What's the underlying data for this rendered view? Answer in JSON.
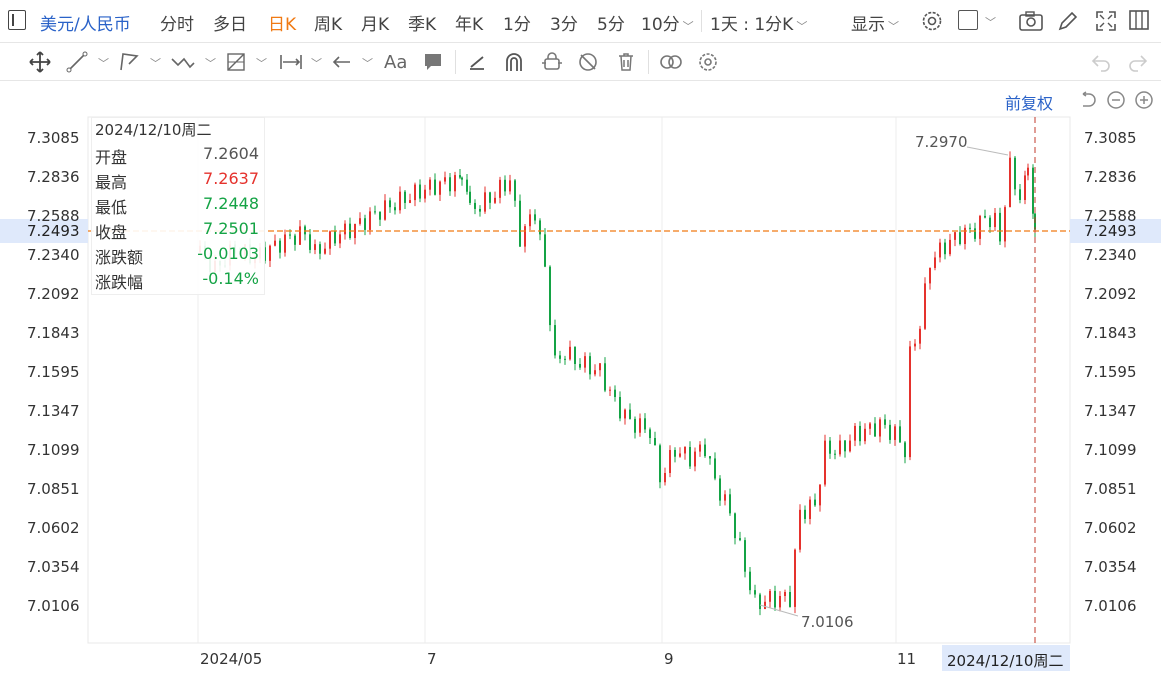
{
  "toolbar": {
    "symbol": "美元/人民币",
    "periods": [
      "分时",
      "多日",
      "日K",
      "周K",
      "月K",
      "季K",
      "年K",
      "1分",
      "3分",
      "5分"
    ],
    "active_period": "日K",
    "minute_select": "10分",
    "multi_select": "1天 : 1分K",
    "display_label": "显示"
  },
  "chart": {
    "adjust_label": "前复权",
    "y_ticks": [
      "7.3085",
      "7.2836",
      "7.2588",
      "7.2340",
      "7.2092",
      "7.1843",
      "7.1595",
      "7.1347",
      "7.1099",
      "7.0851",
      "7.0602",
      "7.0354",
      "7.0106"
    ],
    "current_price": "7.2493",
    "x_labels": [
      "2024/05",
      "7",
      "9",
      "11"
    ],
    "crosshair_date": "2024/12/10周二",
    "high_marker": "7.2970",
    "low_marker": "7.0106"
  },
  "info": {
    "date": "2024/12/10周二",
    "rows": [
      {
        "label": "开盘",
        "value": "7.2604"
      },
      {
        "label": "最高",
        "value": "7.2637"
      },
      {
        "label": "最低",
        "value": "7.2448"
      },
      {
        "label": "收盘",
        "value": "7.2501"
      },
      {
        "label": "涨跌额",
        "value": "-0.0103"
      },
      {
        "label": "涨跌幅",
        "value": "-0.14%"
      }
    ]
  },
  "colors": {
    "up": "#e5322d",
    "down": "#14a345",
    "accent": "#f07a14",
    "link": "#2a62c8"
  },
  "icons": [
    "grid-icon",
    "settings-icon",
    "checkbox-icon",
    "camera-icon",
    "pencil-icon",
    "fullscreen-icon",
    "move-icon",
    "line-tool-icon",
    "polyline-tool-icon",
    "wave-tool-icon",
    "fib-tool-icon",
    "measure-icon",
    "arrow-icon",
    "text-icon",
    "note-icon",
    "brush-icon",
    "magnet-icon",
    "lock-icon",
    "hide-icon",
    "delete-icon",
    "link-icon",
    "gear-icon",
    "undo-icon",
    "redo-icon",
    "reset-icon",
    "zoom-out-icon",
    "zoom-in-icon"
  ]
}
